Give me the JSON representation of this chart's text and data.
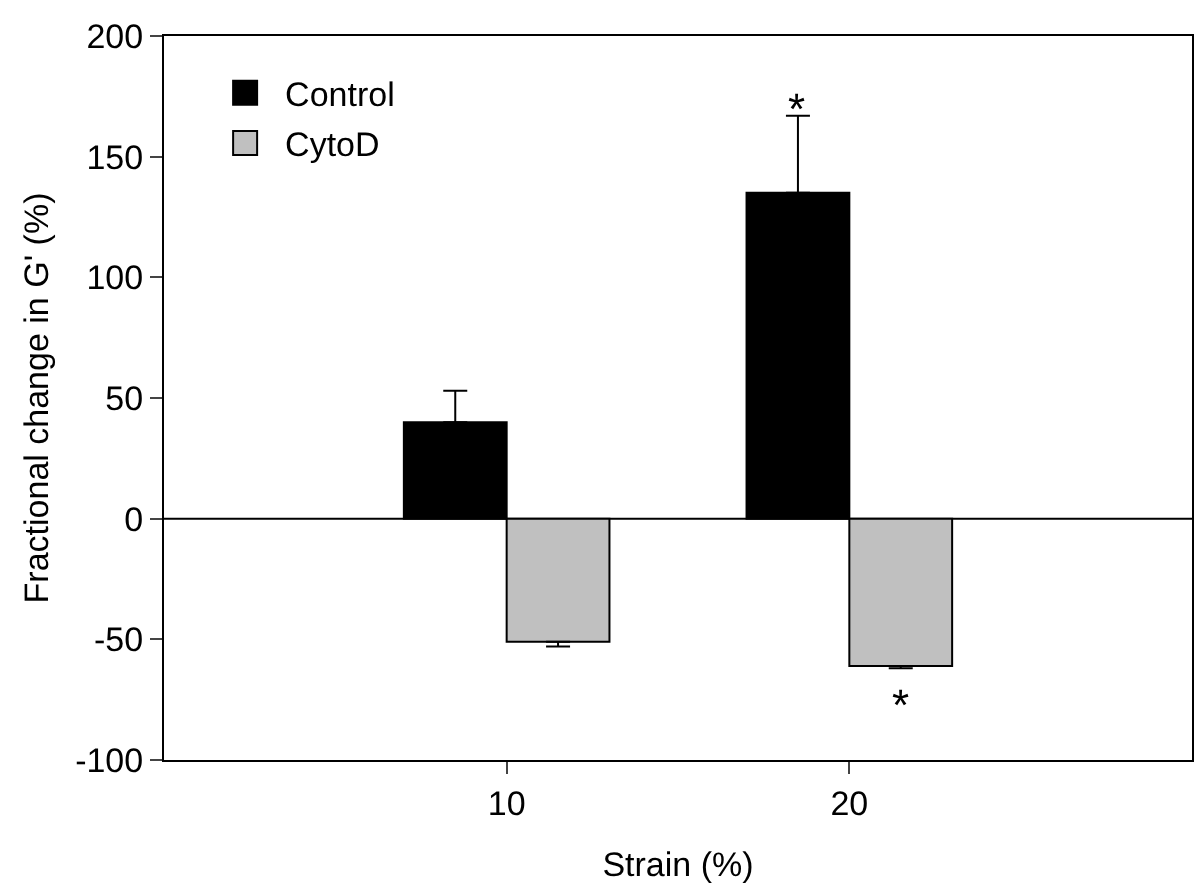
{
  "chart_data": {
    "type": "bar",
    "xlabel": "Strain (%)",
    "ylabel": "Fractional change in G' (%)",
    "x": [
      10,
      20
    ],
    "xlim": [
      0,
      30
    ],
    "xticks": [
      10,
      20
    ],
    "ylim": [
      -100,
      200
    ],
    "yticks": [
      -100,
      -50,
      0,
      50,
      100,
      150,
      200
    ],
    "series": [
      {
        "name": "Control",
        "color": "#000000",
        "values": [
          40,
          135
        ],
        "errors": [
          [
            40,
            53
          ],
          [
            135,
            167
          ]
        ]
      },
      {
        "name": "CytoD",
        "color": "#c0c0c0",
        "values": [
          -51,
          -61
        ],
        "errors": [
          [
            -53,
            -51
          ],
          [
            -62,
            -61
          ]
        ]
      }
    ],
    "ref_lines": [
      {
        "axis": "y",
        "value": 0
      }
    ],
    "annotations": [
      "*",
      {
        "text": "*",
        "x": 20,
        "y": -62
      }
    ],
    "grid": false,
    "legend": "top left"
  }
}
